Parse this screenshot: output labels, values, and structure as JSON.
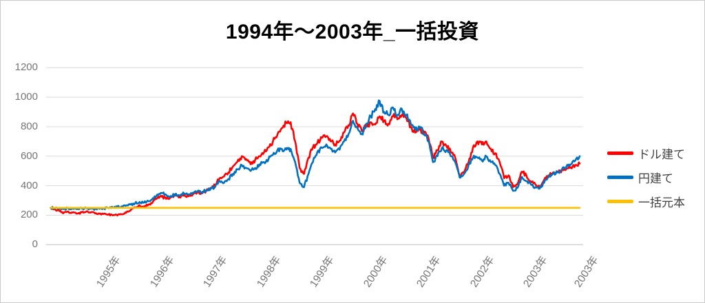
{
  "chart_data": {
    "type": "line",
    "title": "1994年～2003年_一括投資",
    "xlabel": "",
    "ylabel": "",
    "ylim": [
      0,
      1200
    ],
    "y_ticks": [
      0,
      200,
      400,
      600,
      800,
      1000,
      1200
    ],
    "grid": "horizontal-gridlines-only",
    "legend_position": "right-middle",
    "x_unit": "year (monthly samples)",
    "x_start_year": 1994.0,
    "x_step_years": 0.0833333,
    "x_tick_positions_years": [
      1995,
      1996,
      1997,
      1998,
      1999,
      2000,
      2001,
      2002,
      2003,
      2003.95
    ],
    "x_tick_labels": [
      "1995年",
      "1996年",
      "1997年",
      "1998年",
      "1999年",
      "2000年",
      "2001年",
      "2002年",
      "2003年",
      "2003年"
    ],
    "series": [
      {
        "name": "ドル建て",
        "color": "#FF0000",
        "values": [
          250,
          240,
          228,
          218,
          224,
          218,
          212,
          220,
          224,
          217,
          212,
          210,
          210,
          204,
          199,
          198,
          206,
          216,
          232,
          252,
          268,
          258,
          272,
          290,
          315,
          325,
          310,
          320,
          332,
          322,
          336,
          328,
          342,
          355,
          348,
          365,
          385,
          405,
          450,
          462,
          490,
          530,
          562,
          600,
          580,
          545,
          575,
          600,
          625,
          660,
          700,
          745,
          790,
          825,
          830,
          700,
          520,
          480,
          590,
          660,
          690,
          725,
          735,
          700,
          680,
          705,
          760,
          810,
          890,
          820,
          770,
          800,
          830,
          815,
          870,
          840,
          820,
          870,
          850,
          880,
          860,
          800,
          760,
          780,
          760,
          720,
          590,
          640,
          700,
          670,
          630,
          590,
          465,
          490,
          560,
          660,
          700,
          680,
          700,
          650,
          620,
          560,
          450,
          470,
          390,
          410,
          495,
          470,
          430,
          410,
          390,
          440,
          470,
          490,
          495,
          505,
          515,
          525,
          540,
          550
        ]
      },
      {
        "name": "円建て",
        "color": "#0070C0",
        "values": [
          250,
          248,
          245,
          243,
          246,
          244,
          241,
          245,
          247,
          244,
          242,
          243,
          245,
          248,
          252,
          256,
          260,
          265,
          272,
          280,
          290,
          285,
          295,
          315,
          340,
          350,
          338,
          330,
          342,
          335,
          348,
          342,
          352,
          360,
          355,
          368,
          378,
          392,
          432,
          420,
          445,
          480,
          510,
          540,
          520,
          500,
          520,
          545,
          560,
          580,
          610,
          640,
          650,
          645,
          650,
          560,
          420,
          390,
          480,
          560,
          630,
          655,
          680,
          650,
          625,
          645,
          700,
          750,
          840,
          790,
          750,
          820,
          870,
          920,
          975,
          900,
          880,
          930,
          880,
          920,
          880,
          820,
          780,
          800,
          750,
          700,
          560,
          600,
          655,
          640,
          600,
          560,
          455,
          480,
          540,
          590,
          590,
          570,
          600,
          560,
          540,
          480,
          400,
          420,
          365,
          385,
          460,
          430,
          410,
          390,
          380,
          420,
          460,
          480,
          490,
          510,
          530,
          545,
          570,
          600
        ]
      },
      {
        "name": "一括元本",
        "color": "#FFC000",
        "constant_value": 250
      }
    ]
  },
  "frame": {
    "background": "#FFFFFF",
    "border_color": "#C9C9C9",
    "gridline_color": "#D9D9D9",
    "axisline_color": "#BFBFBF",
    "tick_label_color": "#757575",
    "title_color": "#000000",
    "legend_label_color": "#404040"
  }
}
